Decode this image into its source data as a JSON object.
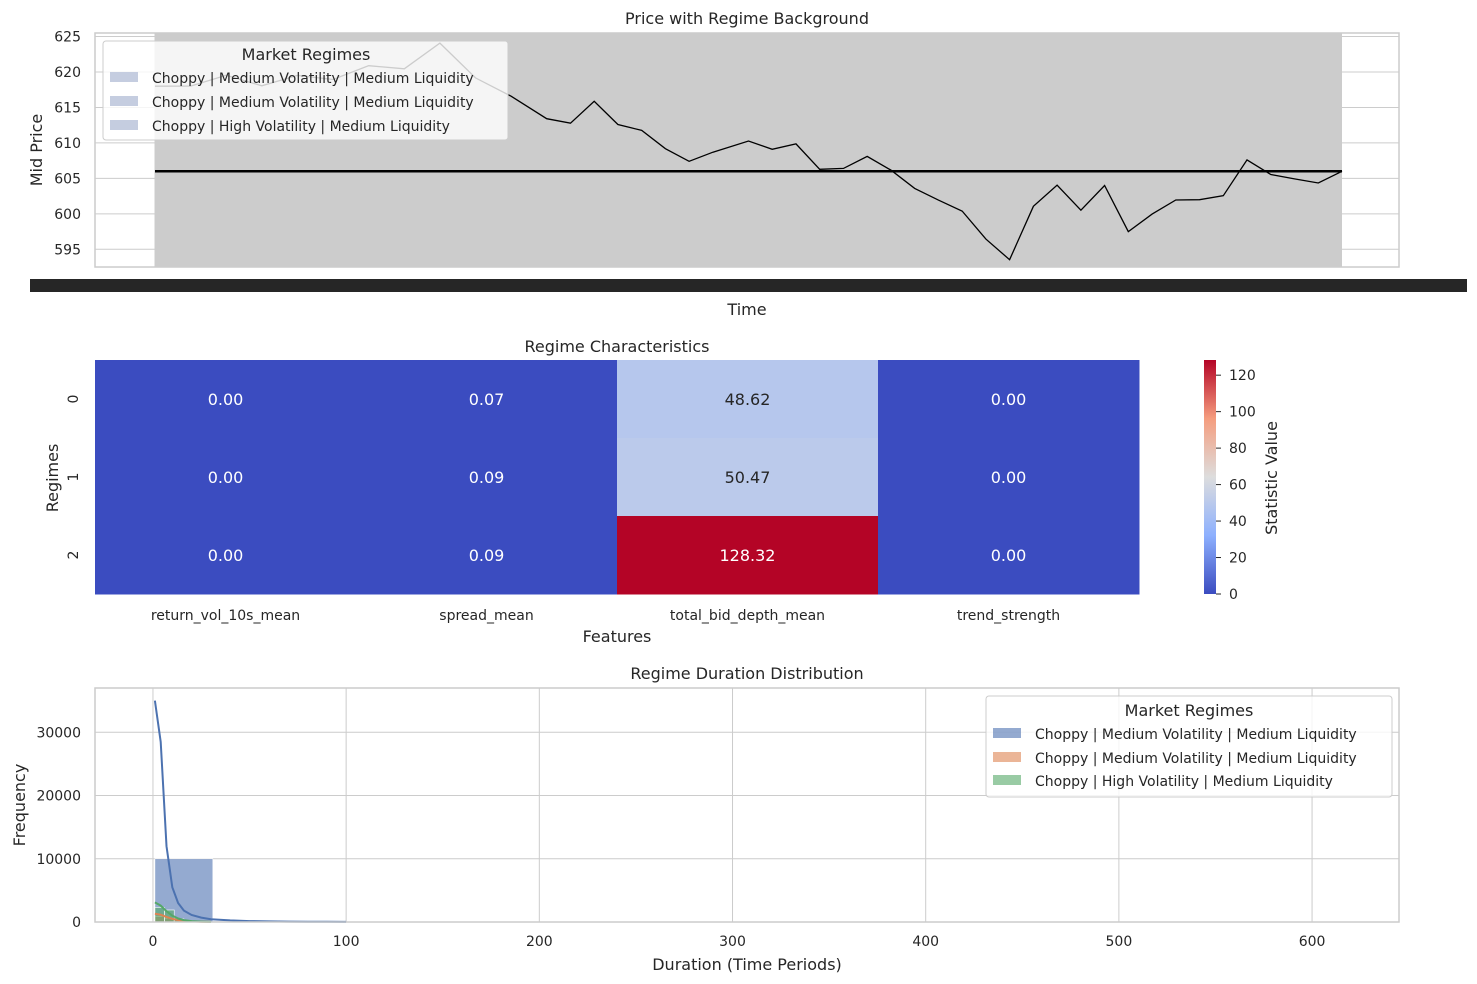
{
  "figure": {
    "price": {
      "title": "Price with Regime Background",
      "xlabel": "Time",
      "ylabel": "Mid Price",
      "legend_title": "Market Regimes"
    },
    "heatmap": {
      "title": "Regime Characteristics",
      "xlabel": "Features",
      "ylabel": "Regimes",
      "colorbar_label": "Statistic Value"
    },
    "duration": {
      "title": "Regime Duration Distribution",
      "xlabel": "Duration (Time Periods)",
      "ylabel": "Frequency",
      "legend_title": "Market Regimes"
    }
  },
  "chart_data": [
    {
      "type": "line",
      "title": "Price with Regime Background",
      "xlabel": "Time",
      "ylabel": "Mid Price",
      "ylim": [
        592.5,
        625.5
      ],
      "yticks": [
        595,
        600,
        605,
        610,
        615,
        620,
        625
      ],
      "grid": true,
      "legend_placement": "upper-left",
      "legend_title": "Market Regimes",
      "legend": [
        {
          "label": "Choppy | Medium Volatility | Medium Liquidity",
          "color": "#c5cde0"
        },
        {
          "label": "Choppy | Medium Volatility | Medium Liquidity",
          "color": "#c5cde0"
        },
        {
          "label": "Choppy | High Volatility | Medium Liquidity",
          "color": "#c5cde0"
        }
      ],
      "background_color": "#cccccc",
      "series": [
        {
          "color": "#000000",
          "x": [
            0,
            0.03,
            0.06,
            0.09,
            0.12,
            0.15,
            0.18,
            0.21,
            0.24,
            0.27,
            0.3,
            0.33,
            0.35,
            0.37,
            0.39,
            0.41,
            0.43,
            0.45,
            0.47,
            0.5,
            0.52,
            0.54,
            0.56,
            0.58,
            0.6,
            0.62,
            0.64,
            0.66,
            0.68,
            0.7,
            0.72,
            0.74,
            0.76,
            0.78,
            0.8,
            0.82,
            0.84,
            0.86,
            0.88,
            0.9,
            0.92,
            0.94,
            0.96,
            0.98,
            1.0
          ],
          "values": [
            618,
            617.5,
            619,
            618,
            620,
            619.5,
            621,
            620,
            623.5,
            619,
            617,
            614,
            613,
            615.5,
            612,
            611.5,
            609.5,
            608,
            609,
            610,
            608.5,
            609.5,
            606.5,
            607,
            608.5,
            606,
            603,
            601.5,
            600.5,
            597,
            594,
            601,
            603.5,
            600,
            604,
            598,
            600.5,
            602,
            601.5,
            602,
            607.5,
            606,
            605.5,
            604.5,
            606
          ]
        },
        {
          "color": "#000000",
          "x": [
            0,
            1
          ],
          "values": [
            606,
            606
          ]
        }
      ]
    },
    {
      "type": "heatmap",
      "title": "Regime Characteristics",
      "xlabel": "Features",
      "ylabel": "Regimes",
      "categories": [
        "return_vol_10s_mean",
        "spread_mean",
        "total_bid_depth_mean",
        "trend_strength"
      ],
      "rows": [
        "0",
        "1",
        "2"
      ],
      "values": [
        [
          0.0,
          0.07,
          48.62,
          0.0
        ],
        [
          0.0,
          0.09,
          50.47,
          0.0
        ],
        [
          0.0,
          0.09,
          128.32,
          0.0
        ]
      ],
      "labels": [
        [
          "0.00",
          "0.07",
          "48.62",
          "0.00"
        ],
        [
          "0.00",
          "0.09",
          "50.47",
          "0.00"
        ],
        [
          "0.00",
          "0.09",
          "128.32",
          "0.00"
        ]
      ],
      "colormap": "coolwarm",
      "vmin": 0,
      "vmax": 128.32,
      "colorbar_label": "Statistic Value",
      "colorbar_ticks": [
        0,
        20,
        40,
        60,
        80,
        100,
        120
      ]
    },
    {
      "type": "bar",
      "title": "Regime Duration Distribution",
      "xlabel": "Duration (Time Periods)",
      "ylabel": "Frequency",
      "xlim": [
        -30,
        645
      ],
      "ylim": [
        0,
        37000
      ],
      "xticks": [
        0,
        100,
        200,
        300,
        400,
        500,
        600
      ],
      "yticks": [
        0,
        10000,
        20000,
        30000
      ],
      "grid": true,
      "legend_placement": "upper-right",
      "legend_title": "Market Regimes",
      "series": [
        {
          "name": "Choppy | Medium Volatility | Medium Liquidity",
          "color": "#4c72b0",
          "bins": [
            [
              1,
              31,
              10000
            ],
            [
              31,
              61,
              150
            ],
            [
              61,
              91,
              60
            ],
            [
              91,
              121,
              20
            ]
          ],
          "kde_x": [
            1,
            4,
            7,
            10,
            13,
            16,
            20,
            25,
            30,
            40,
            50,
            60,
            70,
            80,
            90,
            100
          ],
          "kde_y": [
            35000,
            28500,
            12000,
            5500,
            3000,
            1800,
            1100,
            700,
            450,
            250,
            150,
            100,
            70,
            50,
            30,
            15
          ]
        },
        {
          "name": "Choppy | Medium Volatility | Medium Liquidity",
          "color": "#dd8452",
          "bins": [
            [
              1,
              6,
              900
            ],
            [
              6,
              11,
              600
            ],
            [
              11,
              16,
              300
            ]
          ],
          "kde_x": [
            1,
            4,
            7,
            10,
            13,
            16,
            20,
            25,
            30
          ],
          "kde_y": [
            1300,
            1150,
            800,
            500,
            300,
            180,
            90,
            40,
            10
          ]
        },
        {
          "name": "Choppy | High Volatility | Medium Liquidity",
          "color": "#55a868",
          "bins": [
            [
              1,
              6,
              2300
            ],
            [
              6,
              11,
              1900
            ],
            [
              11,
              16,
              500
            ]
          ],
          "kde_x": [
            1,
            4,
            7,
            10,
            13,
            16,
            20,
            25,
            30
          ],
          "kde_y": [
            3100,
            2600,
            1700,
            1000,
            550,
            300,
            140,
            60,
            15
          ]
        }
      ]
    }
  ]
}
